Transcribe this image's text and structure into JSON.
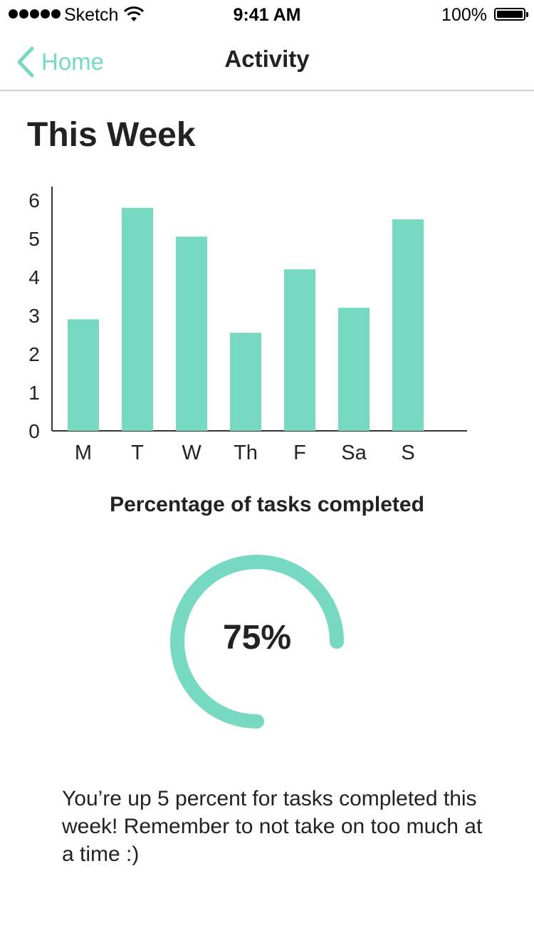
{
  "status_bar": {
    "carrier": "Sketch",
    "time": "9:41 AM",
    "battery": "100%",
    "icons": [
      "signal-dots-icon",
      "wifi-icon",
      "battery-icon"
    ]
  },
  "nav": {
    "back_label": "Home",
    "title": "Activity",
    "back_icon": "chevron-left-icon"
  },
  "section_title": "This Week",
  "chart_data": {
    "type": "bar",
    "categories": [
      "M",
      "T",
      "W",
      "Th",
      "F",
      "Sa",
      "S"
    ],
    "values": [
      2.9,
      5.8,
      5.05,
      2.55,
      4.2,
      3.2,
      5.5
    ],
    "yticks": [
      0,
      1,
      2,
      3,
      4,
      5,
      6
    ],
    "ylim": [
      0,
      6.3
    ],
    "title": "",
    "xlabel": "",
    "ylabel": "",
    "grid": false,
    "bar_color": "#78d9c2"
  },
  "chart_caption": "Percentage of tasks completed",
  "completion": {
    "value": "75%",
    "fraction": 0.75,
    "color": "#78d9c2"
  },
  "message": "You’re up 5 percent for tasks completed this week! Remember to not take on too much at a time :)",
  "colors": {
    "accent": "#78d9c2",
    "text": "#222222",
    "divider": "#cfcfcf"
  }
}
